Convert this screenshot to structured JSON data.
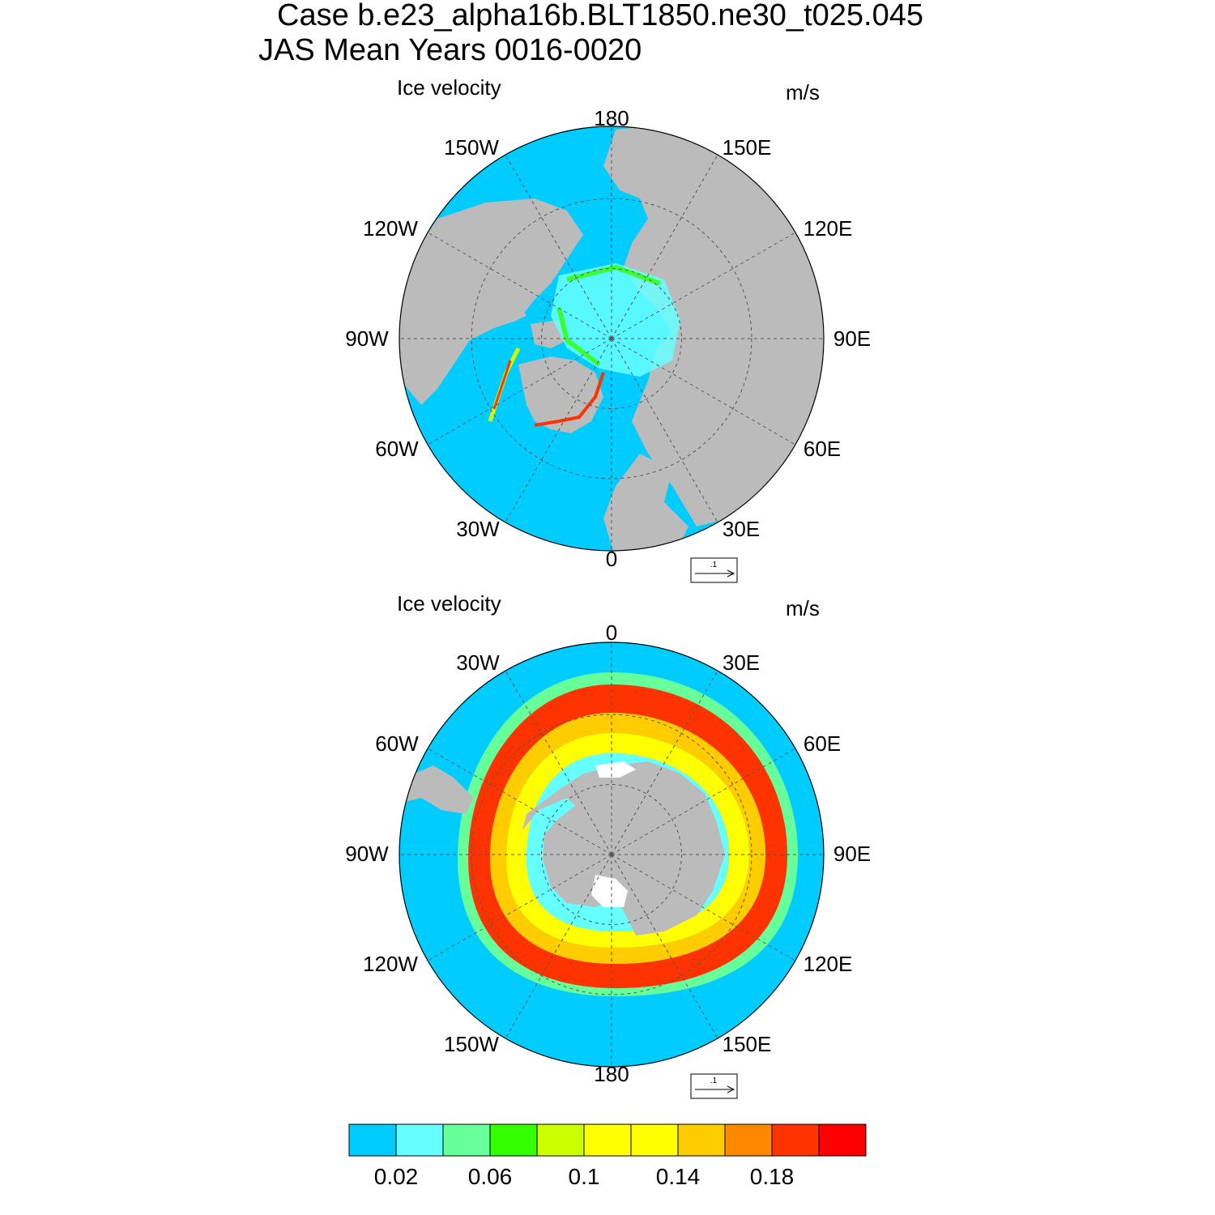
{
  "header": {
    "title_line1": "Case b.e23_alpha16b.BLT1850.ne30_t025.045",
    "title_line2": "JAS Mean   Years 0016-0020"
  },
  "panels": [
    {
      "hemisphere": "north",
      "title": "Ice velocity",
      "units": "m/s",
      "lon_labels": [
        "180",
        "150E",
        "120E",
        "90E",
        "60E",
        "30E",
        "0",
        "30W",
        "60W",
        "90W",
        "120W",
        "150W"
      ],
      "ref_vector_label": ".1"
    },
    {
      "hemisphere": "south",
      "title": "Ice velocity",
      "units": "m/s",
      "lon_labels": [
        "0",
        "30E",
        "60E",
        "90E",
        "120E",
        "150E",
        "180",
        "150W",
        "120W",
        "90W",
        "60W",
        "30W"
      ],
      "ref_vector_label": ".1"
    }
  ],
  "colorbar": {
    "colors": [
      "#00ccff",
      "#66ffff",
      "#66ff99",
      "#33ff00",
      "#ccff00",
      "#ffff00",
      "#ffff00",
      "#ffcc00",
      "#ff8800",
      "#ff3300",
      "#ff0000"
    ],
    "tick_labels": [
      "0.02",
      "0.06",
      "0.1",
      "0.14",
      "0.18"
    ]
  },
  "colors": {
    "ocean": "#00ccff",
    "land": "#bbbbbb",
    "grid": "#555555"
  }
}
